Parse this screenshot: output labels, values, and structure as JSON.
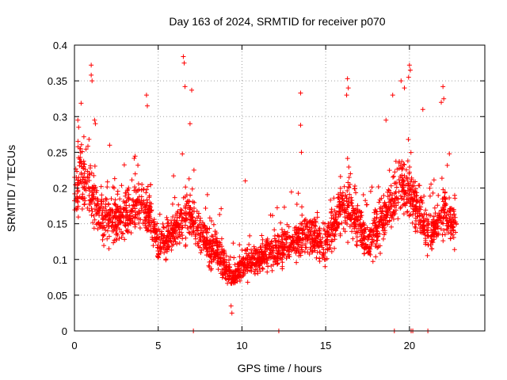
{
  "chart_data": {
    "type": "scatter",
    "title": "Day 163 of 2024, SRMTID for receiver p070",
    "xlabel": "GPS time / hours",
    "ylabel": "SRMTID / TECUs",
    "xlim": [
      0,
      24.5
    ],
    "ylim": [
      0,
      0.4
    ],
    "x_ticks": [
      0,
      5,
      10,
      15,
      20
    ],
    "y_ticks": [
      0,
      0.05,
      0.1,
      0.15,
      0.2,
      0.25,
      0.3,
      0.35,
      0.4
    ],
    "x_tick_labels": [
      "0",
      "5",
      "10",
      "15",
      "20"
    ],
    "y_tick_labels": [
      "0",
      "0.05",
      "0.1",
      "0.15",
      "0.2",
      "0.25",
      "0.3",
      "0.35",
      "0.4"
    ],
    "grid": true,
    "marker": "+",
    "series_color": "#ff0000",
    "trend": [
      [
        0.0,
        0.18
      ],
      [
        0.4,
        0.22
      ],
      [
        1.0,
        0.19
      ],
      [
        1.5,
        0.16
      ],
      [
        2.5,
        0.155
      ],
      [
        3.0,
        0.16
      ],
      [
        3.5,
        0.17
      ],
      [
        4.0,
        0.175
      ],
      [
        4.5,
        0.16
      ],
      [
        5.0,
        0.12
      ],
      [
        5.5,
        0.13
      ],
      [
        6.0,
        0.14
      ],
      [
        6.5,
        0.16
      ],
      [
        7.0,
        0.16
      ],
      [
        7.5,
        0.14
      ],
      [
        8.0,
        0.12
      ],
      [
        8.5,
        0.11
      ],
      [
        9.0,
        0.09
      ],
      [
        9.5,
        0.075
      ],
      [
        10.0,
        0.09
      ],
      [
        10.5,
        0.095
      ],
      [
        11.0,
        0.1
      ],
      [
        11.5,
        0.11
      ],
      [
        12.0,
        0.11
      ],
      [
        12.5,
        0.12
      ],
      [
        13.0,
        0.125
      ],
      [
        13.5,
        0.13
      ],
      [
        14.0,
        0.13
      ],
      [
        14.5,
        0.13
      ],
      [
        15.0,
        0.12
      ],
      [
        15.5,
        0.15
      ],
      [
        16.0,
        0.17
      ],
      [
        16.5,
        0.17
      ],
      [
        17.0,
        0.15
      ],
      [
        17.5,
        0.12
      ],
      [
        18.0,
        0.14
      ],
      [
        18.5,
        0.16
      ],
      [
        19.0,
        0.18
      ],
      [
        19.5,
        0.2
      ],
      [
        20.0,
        0.19
      ],
      [
        20.5,
        0.17
      ],
      [
        21.0,
        0.14
      ],
      [
        21.5,
        0.14
      ],
      [
        22.0,
        0.17
      ],
      [
        22.5,
        0.16
      ],
      [
        22.8,
        0.14
      ]
    ],
    "outliers": [
      [
        1.0,
        0.372
      ],
      [
        1.0,
        0.358
      ],
      [
        1.05,
        0.35
      ],
      [
        4.3,
        0.33
      ],
      [
        4.35,
        0.315
      ],
      [
        6.5,
        0.384
      ],
      [
        6.55,
        0.375
      ],
      [
        6.6,
        0.342
      ],
      [
        7.0,
        0.337
      ],
      [
        6.9,
        0.29
      ],
      [
        13.5,
        0.333
      ],
      [
        13.5,
        0.288
      ],
      [
        13.55,
        0.25
      ],
      [
        16.3,
        0.353
      ],
      [
        16.35,
        0.34
      ],
      [
        16.25,
        0.33
      ],
      [
        19.0,
        0.33
      ],
      [
        19.5,
        0.35
      ],
      [
        19.7,
        0.34
      ],
      [
        20.0,
        0.372
      ],
      [
        20.05,
        0.365
      ],
      [
        19.95,
        0.355
      ],
      [
        22.0,
        0.342
      ],
      [
        22.05,
        0.325
      ],
      [
        21.9,
        0.32
      ],
      [
        9.4,
        0.025
      ],
      [
        9.35,
        0.035
      ],
      [
        10.2,
        0.21
      ],
      [
        0.2,
        0.295
      ],
      [
        0.25,
        0.285
      ],
      [
        1.2,
        0.295
      ],
      [
        1.25,
        0.29
      ],
      [
        2.1,
        0.26
      ],
      [
        18.6,
        0.295
      ],
      [
        20.8,
        0.31
      ]
    ],
    "zero_points": [
      7.1,
      12.2,
      19.1,
      20.1,
      20.2,
      21.1
    ],
    "n_points": 2600,
    "seed": 163
  }
}
